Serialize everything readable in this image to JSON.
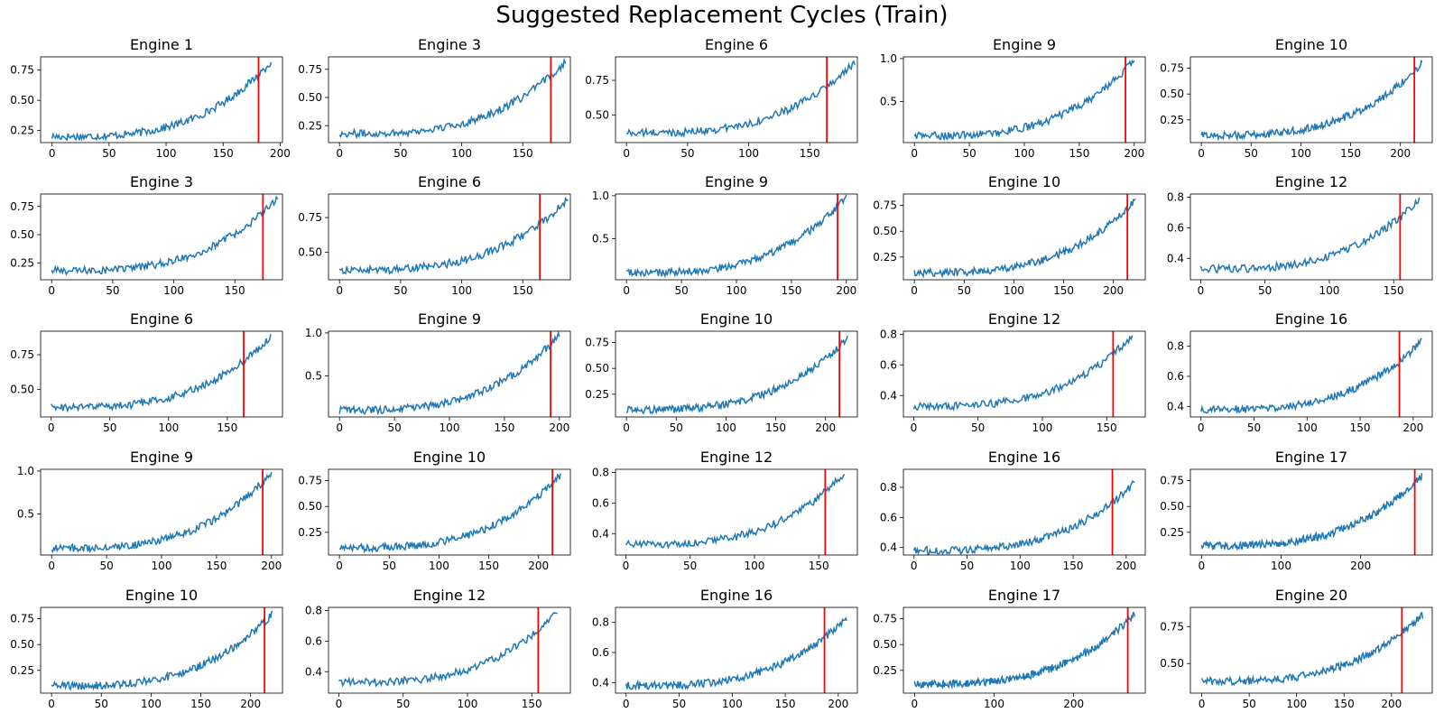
{
  "title": "Suggested Replacement Cycles (Train)",
  "colors": {
    "line": "#1f77b4",
    "marker": "#ff0000",
    "axis": "#000000"
  },
  "chart_data": [
    {
      "type": "line",
      "title": "Engine 1",
      "ylim": [
        0.15,
        0.86
      ],
      "yticks": [
        0.25,
        0.5,
        0.75
      ],
      "yticklabels": [
        "0.25",
        "0.50",
        "0.75"
      ],
      "xlim": [
        -10,
        202
      ],
      "xticks": [
        0,
        50,
        100,
        150,
        200
      ],
      "x": [
        0,
        192
      ],
      "y": [
        0.2,
        0.82
      ],
      "replacement_cycle": 181
    },
    {
      "type": "line",
      "title": "Engine 3",
      "ylim": [
        0.1,
        0.86
      ],
      "yticks": [
        0.25,
        0.5,
        0.75
      ],
      "yticklabels": [
        "0.25",
        "0.50",
        "0.75"
      ],
      "xlim": [
        -9,
        189
      ],
      "xticks": [
        0,
        50,
        100,
        150
      ],
      "x": [
        0,
        185
      ],
      "y": [
        0.18,
        0.82
      ],
      "replacement_cycle": 173
    },
    {
      "type": "line",
      "title": "Engine 6",
      "ylim": [
        0.3,
        0.92
      ],
      "yticks": [
        0.5,
        0.75
      ],
      "yticklabels": [
        "0.50",
        "0.75"
      ],
      "xlim": [
        -9,
        189
      ],
      "xticks": [
        0,
        50,
        100,
        150
      ],
      "x": [
        0,
        187
      ],
      "y": [
        0.37,
        0.88
      ],
      "replacement_cycle": 164
    },
    {
      "type": "line",
      "title": "Engine 9",
      "ylim": [
        0.02,
        1.02
      ],
      "yticks": [
        0.5,
        1.0
      ],
      "yticklabels": [
        "0.5",
        "1.0"
      ],
      "xlim": [
        -10,
        210
      ],
      "xticks": [
        0,
        50,
        100,
        150,
        200
      ],
      "x": [
        0,
        200
      ],
      "y": [
        0.1,
        0.98
      ],
      "replacement_cycle": 192
    },
    {
      "type": "line",
      "title": "Engine 10",
      "ylim": [
        0.03,
        0.86
      ],
      "yticks": [
        0.25,
        0.5,
        0.75
      ],
      "yticklabels": [
        "0.25",
        "0.50",
        "0.75"
      ],
      "xlim": [
        -11,
        232
      ],
      "xticks": [
        0,
        50,
        100,
        150,
        200
      ],
      "x": [
        0,
        222
      ],
      "y": [
        0.1,
        0.8
      ],
      "replacement_cycle": 214
    },
    {
      "type": "line",
      "title": "Engine 3",
      "ylim": [
        0.1,
        0.86
      ],
      "yticks": [
        0.25,
        0.5,
        0.75
      ],
      "yticklabels": [
        "0.25",
        "0.50",
        "0.75"
      ],
      "xlim": [
        -9,
        189
      ],
      "xticks": [
        0,
        50,
        100,
        150
      ],
      "x": [
        0,
        185
      ],
      "y": [
        0.18,
        0.82
      ],
      "replacement_cycle": 173
    },
    {
      "type": "line",
      "title": "Engine 6",
      "ylim": [
        0.3,
        0.92
      ],
      "yticks": [
        0.5,
        0.75
      ],
      "yticklabels": [
        "0.50",
        "0.75"
      ],
      "xlim": [
        -9,
        189
      ],
      "xticks": [
        0,
        50,
        100,
        150
      ],
      "x": [
        0,
        187
      ],
      "y": [
        0.37,
        0.88
      ],
      "replacement_cycle": 164
    },
    {
      "type": "line",
      "title": "Engine 9",
      "ylim": [
        0.02,
        1.02
      ],
      "yticks": [
        0.5,
        1.0
      ],
      "yticklabels": [
        "0.5",
        "1.0"
      ],
      "xlim": [
        -10,
        210
      ],
      "xticks": [
        0,
        50,
        100,
        150,
        200
      ],
      "x": [
        0,
        200
      ],
      "y": [
        0.1,
        0.98
      ],
      "replacement_cycle": 192
    },
    {
      "type": "line",
      "title": "Engine 10",
      "ylim": [
        0.03,
        0.86
      ],
      "yticks": [
        0.25,
        0.5,
        0.75
      ],
      "yticklabels": [
        "0.25",
        "0.50",
        "0.75"
      ],
      "xlim": [
        -11,
        232
      ],
      "xticks": [
        0,
        50,
        100,
        150,
        200
      ],
      "x": [
        0,
        222
      ],
      "y": [
        0.1,
        0.8
      ],
      "replacement_cycle": 214
    },
    {
      "type": "line",
      "title": "Engine 12",
      "ylim": [
        0.26,
        0.82
      ],
      "yticks": [
        0.4,
        0.6,
        0.8
      ],
      "yticklabels": [
        "0.4",
        "0.6",
        "0.8"
      ],
      "xlim": [
        -8,
        180
      ],
      "xticks": [
        0,
        50,
        100,
        150
      ],
      "x": [
        0,
        170
      ],
      "y": [
        0.33,
        0.79
      ],
      "replacement_cycle": 155
    },
    {
      "type": "line",
      "title": "Engine 6",
      "ylim": [
        0.3,
        0.92
      ],
      "yticks": [
        0.5,
        0.75
      ],
      "yticklabels": [
        "0.50",
        "0.75"
      ],
      "xlim": [
        -9,
        197
      ],
      "xticks": [
        0,
        50,
        100,
        150
      ],
      "x": [
        0,
        187
      ],
      "y": [
        0.37,
        0.88
      ],
      "replacement_cycle": 164
    },
    {
      "type": "line",
      "title": "Engine 9",
      "ylim": [
        0.02,
        1.02
      ],
      "yticks": [
        0.5,
        1.0
      ],
      "yticklabels": [
        "0.5",
        "1.0"
      ],
      "xlim": [
        -10,
        210
      ],
      "xticks": [
        0,
        50,
        100,
        150,
        200
      ],
      "x": [
        0,
        200
      ],
      "y": [
        0.1,
        0.98
      ],
      "replacement_cycle": 192
    },
    {
      "type": "line",
      "title": "Engine 10",
      "ylim": [
        0.03,
        0.86
      ],
      "yticks": [
        0.25,
        0.5,
        0.75
      ],
      "yticklabels": [
        "0.25",
        "0.50",
        "0.75"
      ],
      "xlim": [
        -11,
        232
      ],
      "xticks": [
        0,
        50,
        100,
        150,
        200
      ],
      "x": [
        0,
        222
      ],
      "y": [
        0.1,
        0.8
      ],
      "replacement_cycle": 214
    },
    {
      "type": "line",
      "title": "Engine 12",
      "ylim": [
        0.26,
        0.82
      ],
      "yticks": [
        0.4,
        0.6,
        0.8
      ],
      "yticklabels": [
        "0.4",
        "0.6",
        "0.8"
      ],
      "xlim": [
        -8,
        180
      ],
      "xticks": [
        0,
        50,
        100,
        150
      ],
      "x": [
        0,
        170
      ],
      "y": [
        0.33,
        0.79
      ],
      "replacement_cycle": 155
    },
    {
      "type": "line",
      "title": "Engine 16",
      "ylim": [
        0.33,
        0.9
      ],
      "yticks": [
        0.4,
        0.6,
        0.8
      ],
      "yticklabels": [
        "0.4",
        "0.6",
        "0.8"
      ],
      "xlim": [
        -10,
        218
      ],
      "xticks": [
        0,
        50,
        100,
        150,
        200
      ],
      "x": [
        0,
        208
      ],
      "y": [
        0.38,
        0.83
      ],
      "replacement_cycle": 187
    },
    {
      "type": "line",
      "title": "Engine 9",
      "ylim": [
        0.02,
        1.02
      ],
      "yticks": [
        0.5,
        1.0
      ],
      "yticklabels": [
        "0.5",
        "1.0"
      ],
      "xlim": [
        -10,
        210
      ],
      "xticks": [
        0,
        50,
        100,
        150,
        200
      ],
      "x": [
        0,
        200
      ],
      "y": [
        0.1,
        0.98
      ],
      "replacement_cycle": 192
    },
    {
      "type": "line",
      "title": "Engine 10",
      "ylim": [
        0.03,
        0.86
      ],
      "yticks": [
        0.25,
        0.5,
        0.75
      ],
      "yticklabels": [
        "0.25",
        "0.50",
        "0.75"
      ],
      "xlim": [
        -11,
        232
      ],
      "xticks": [
        0,
        50,
        100,
        150,
        200
      ],
      "x": [
        0,
        222
      ],
      "y": [
        0.1,
        0.8
      ],
      "replacement_cycle": 214
    },
    {
      "type": "line",
      "title": "Engine 12",
      "ylim": [
        0.26,
        0.82
      ],
      "yticks": [
        0.4,
        0.6,
        0.8
      ],
      "yticklabels": [
        "0.4",
        "0.6",
        "0.8"
      ],
      "xlim": [
        -8,
        180
      ],
      "xticks": [
        0,
        50,
        100,
        150
      ],
      "x": [
        0,
        170
      ],
      "y": [
        0.33,
        0.79
      ],
      "replacement_cycle": 155
    },
    {
      "type": "line",
      "title": "Engine 16",
      "ylim": [
        0.35,
        0.92
      ],
      "yticks": [
        0.4,
        0.6,
        0.8
      ],
      "yticklabels": [
        "0.4",
        "0.6",
        "0.8"
      ],
      "xlim": [
        -10,
        218
      ],
      "xticks": [
        0,
        50,
        100,
        150,
        200
      ],
      "x": [
        0,
        208
      ],
      "y": [
        0.38,
        0.83
      ],
      "replacement_cycle": 187
    },
    {
      "type": "line",
      "title": "Engine 17",
      "ylim": [
        0.03,
        0.86
      ],
      "yticks": [
        0.25,
        0.5,
        0.75
      ],
      "yticklabels": [
        "0.25",
        "0.50",
        "0.75"
      ],
      "xlim": [
        -14,
        290
      ],
      "xticks": [
        0,
        100,
        200
      ],
      "x": [
        0,
        277
      ],
      "y": [
        0.12,
        0.8
      ],
      "replacement_cycle": 268
    },
    {
      "type": "line",
      "title": "Engine 10",
      "ylim": [
        0.03,
        0.86
      ],
      "yticks": [
        0.25,
        0.5,
        0.75
      ],
      "yticklabels": [
        "0.25",
        "0.50",
        "0.75"
      ],
      "xlim": [
        -11,
        232
      ],
      "xticks": [
        0,
        50,
        100,
        150,
        200
      ],
      "x": [
        0,
        222
      ],
      "y": [
        0.1,
        0.8
      ],
      "replacement_cycle": 214
    },
    {
      "type": "line",
      "title": "Engine 12",
      "ylim": [
        0.26,
        0.82
      ],
      "yticks": [
        0.4,
        0.6,
        0.8
      ],
      "yticklabels": [
        "0.4",
        "0.6",
        "0.8"
      ],
      "xlim": [
        -8,
        180
      ],
      "xticks": [
        0,
        50,
        100,
        150
      ],
      "x": [
        0,
        170
      ],
      "y": [
        0.33,
        0.79
      ],
      "replacement_cycle": 155
    },
    {
      "type": "line",
      "title": "Engine 16",
      "ylim": [
        0.33,
        0.9
      ],
      "yticks": [
        0.4,
        0.6,
        0.8
      ],
      "yticklabels": [
        "0.4",
        "0.6",
        "0.8"
      ],
      "xlim": [
        -10,
        218
      ],
      "xticks": [
        0,
        50,
        100,
        150,
        200
      ],
      "x": [
        0,
        208
      ],
      "y": [
        0.38,
        0.83
      ],
      "replacement_cycle": 187
    },
    {
      "type": "line",
      "title": "Engine 17",
      "ylim": [
        0.03,
        0.86
      ],
      "yticks": [
        0.25,
        0.5,
        0.75
      ],
      "yticklabels": [
        "0.25",
        "0.50",
        "0.75"
      ],
      "xlim": [
        -14,
        290
      ],
      "xticks": [
        0,
        100,
        200
      ],
      "x": [
        0,
        277
      ],
      "y": [
        0.12,
        0.8
      ],
      "replacement_cycle": 268
    },
    {
      "type": "line",
      "title": "Engine 20",
      "ylim": [
        0.3,
        0.88
      ],
      "yticks": [
        0.5,
        0.75
      ],
      "yticklabels": [
        "0.50",
        "0.75"
      ],
      "xlim": [
        -12,
        243
      ],
      "xticks": [
        0,
        50,
        100,
        150,
        200
      ],
      "x": [
        0,
        233
      ],
      "y": [
        0.38,
        0.83
      ],
      "replacement_cycle": 211
    }
  ]
}
